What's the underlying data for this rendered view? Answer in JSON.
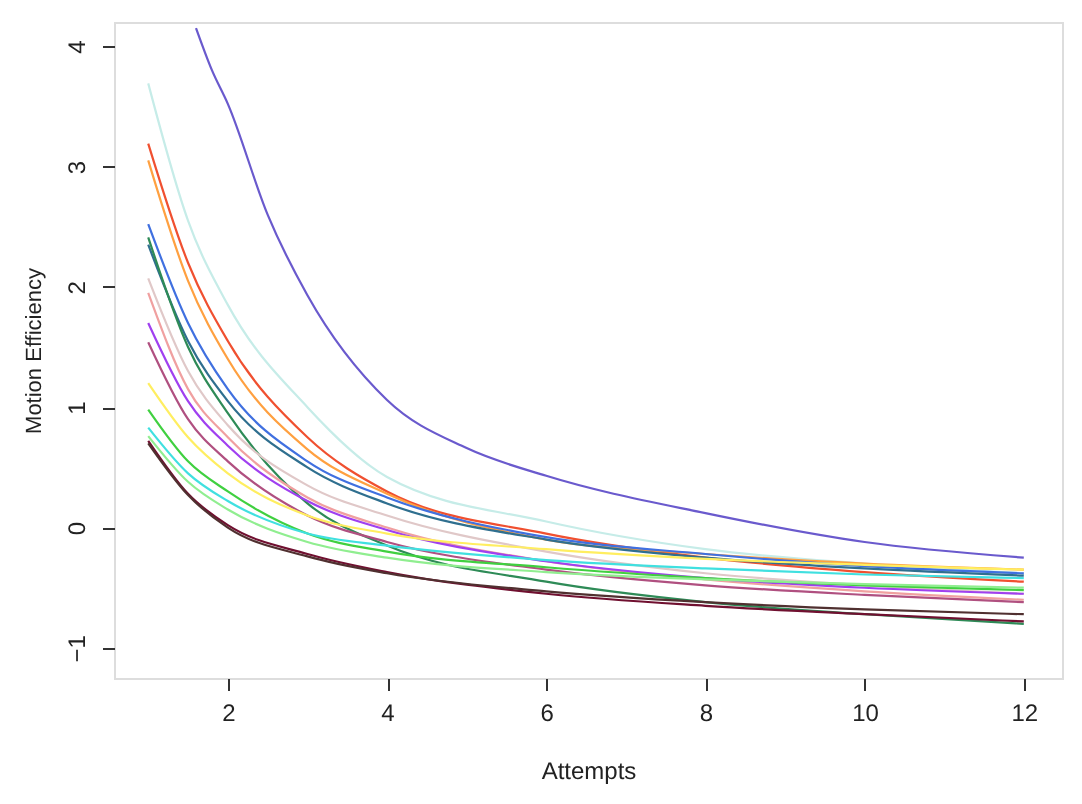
{
  "chart_data": {
    "type": "line",
    "xlabel": "Attempts",
    "ylabel": "Motion Efficiency",
    "xlim": [
      0.57,
      12.48
    ],
    "ylim": [
      -1.25,
      4.2
    ],
    "xticks": [
      2,
      4,
      6,
      8,
      10,
      12
    ],
    "yticks": [
      -1,
      0,
      1,
      2,
      3,
      4
    ],
    "grid": false,
    "marker": "none",
    "line_style": "solid",
    "x": [
      1,
      1.5,
      2,
      3,
      4,
      6,
      8,
      10,
      12
    ],
    "series": [
      {
        "color": "#6a5acd",
        "x": [
          1.6,
          1.8,
          2,
          2.5,
          3,
          4,
          5,
          6,
          8,
          10,
          12
        ],
        "values": [
          4.15,
          3.8,
          3.52,
          2.6,
          1.93,
          1.06,
          0.66,
          0.43,
          0.12,
          -0.12,
          -0.25
        ]
      },
      {
        "color": "#c6ece8",
        "values": [
          3.69,
          2.55,
          1.85,
          1.0,
          0.42,
          0.05,
          -0.18,
          -0.3,
          -0.38
        ]
      },
      {
        "color": "#f05030",
        "values": [
          3.19,
          2.2,
          1.55,
          0.75,
          0.3,
          -0.05,
          -0.25,
          -0.37,
          -0.45
        ]
      },
      {
        "color": "#ffa040",
        "values": [
          3.05,
          2.05,
          1.4,
          0.65,
          0.28,
          -0.1,
          -0.22,
          -0.3,
          -0.35
        ]
      },
      {
        "color": "#4070e0",
        "values": [
          2.52,
          1.7,
          1.15,
          0.55,
          0.25,
          -0.08,
          -0.22,
          -0.32,
          -0.38
        ]
      },
      {
        "color": "#2f6f8f",
        "values": [
          2.35,
          1.55,
          1.05,
          0.5,
          0.2,
          -0.1,
          -0.25,
          -0.34,
          -0.4
        ]
      },
      {
        "color": "#2e8b57",
        "values": [
          2.41,
          1.5,
          0.95,
          0.2,
          -0.15,
          -0.45,
          -0.62,
          -0.72,
          -0.8
        ]
      },
      {
        "color": "#e0c8c8",
        "values": [
          2.07,
          1.3,
          0.85,
          0.35,
          0.1,
          -0.2,
          -0.38,
          -0.48,
          -0.55
        ]
      },
      {
        "color": "#f0a0a0",
        "values": [
          1.95,
          1.15,
          0.75,
          0.25,
          0.0,
          -0.28,
          -0.43,
          -0.53,
          -0.6
        ]
      },
      {
        "color": "#a040f0",
        "values": [
          1.7,
          1.05,
          0.68,
          0.22,
          -0.02,
          -0.28,
          -0.42,
          -0.5,
          -0.55
        ]
      },
      {
        "color": "#b05080",
        "values": [
          1.54,
          0.9,
          0.55,
          0.1,
          -0.12,
          -0.35,
          -0.48,
          -0.56,
          -0.62
        ]
      },
      {
        "color": "#ffee60",
        "values": [
          1.2,
          0.75,
          0.45,
          0.1,
          -0.05,
          -0.18,
          -0.26,
          -0.31,
          -0.35
        ]
      },
      {
        "color": "#40d040",
        "values": [
          0.98,
          0.55,
          0.3,
          -0.05,
          -0.2,
          -0.33,
          -0.42,
          -0.48,
          -0.52
        ]
      },
      {
        "color": "#40e0e0",
        "values": [
          0.83,
          0.45,
          0.22,
          -0.05,
          -0.15,
          -0.27,
          -0.34,
          -0.39,
          -0.42
        ]
      },
      {
        "color": "#90ee90",
        "values": [
          0.76,
          0.38,
          0.15,
          -0.12,
          -0.25,
          -0.37,
          -0.43,
          -0.47,
          -0.5
        ]
      },
      {
        "color": "#701030",
        "values": [
          0.72,
          0.28,
          0.02,
          -0.22,
          -0.37,
          -0.55,
          -0.65,
          -0.72,
          -0.78
        ]
      },
      {
        "color": "#503030",
        "values": [
          0.7,
          0.27,
          0.0,
          -0.24,
          -0.38,
          -0.53,
          -0.62,
          -0.68,
          -0.72
        ]
      }
    ]
  }
}
